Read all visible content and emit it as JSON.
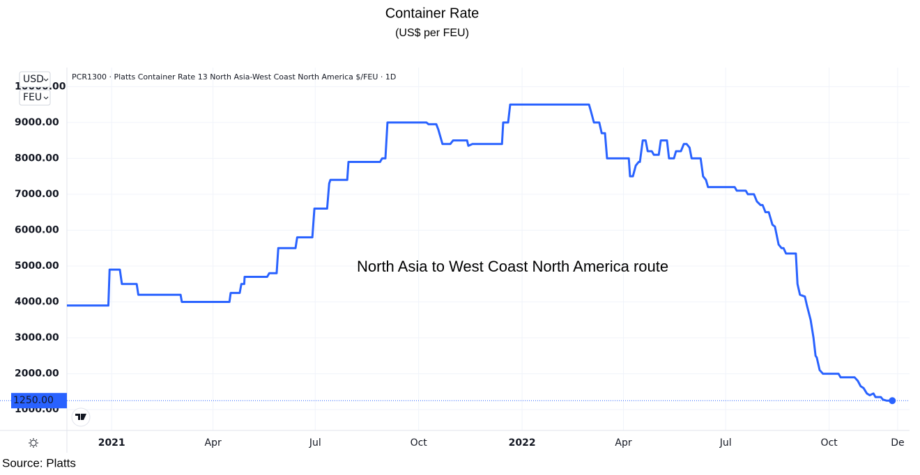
{
  "chart_data": {
    "type": "line",
    "title": "Container Rate",
    "subtitle": "(US$ per FEU)",
    "annotation": "North Asia to West Coast North America route",
    "source": "Source: Platts",
    "currency": "USD",
    "unit": "FEU",
    "last_label": "1250.00",
    "grid": true,
    "xlim": [
      2020.891,
      2022.944
    ],
    "ylim": [
      420,
      10530
    ],
    "xticks": [
      {
        "value": 2021,
        "label": "2021"
      },
      {
        "value": 2021.247,
        "label": "Apr"
      },
      {
        "value": 2021.496,
        "label": "Jul"
      },
      {
        "value": 2021.748,
        "label": "Oct"
      },
      {
        "value": 2022,
        "label": "2022"
      },
      {
        "value": 2022.247,
        "label": "Apr"
      },
      {
        "value": 2022.496,
        "label": "Jul"
      },
      {
        "value": 2022.748,
        "label": "Oct"
      },
      {
        "value": 2022.915,
        "label": "De"
      }
    ],
    "yticks": [
      {
        "value": 1000,
        "label": "1000.00"
      },
      {
        "value": 2000,
        "label": "2000.00"
      },
      {
        "value": 3000,
        "label": "3000.00"
      },
      {
        "value": 4000,
        "label": "4000.00"
      },
      {
        "value": 5000,
        "label": "5000.00"
      },
      {
        "value": 6000,
        "label": "6000.00"
      },
      {
        "value": 7000,
        "label": "7000.00"
      },
      {
        "value": 8000,
        "label": "8000.00"
      },
      {
        "value": 9000,
        "label": "9000.00"
      },
      {
        "value": 10000,
        "label": "10000.00"
      }
    ],
    "x": [
      2020.891,
      2020.992,
      2020.995,
      2021.02,
      2021.025,
      2021.061,
      2021.065,
      2021.168,
      2021.171,
      2021.287,
      2021.29,
      2021.312,
      2021.316,
      2021.323,
      2021.324,
      2021.379,
      2021.384,
      2021.402,
      2021.406,
      2021.448,
      2021.452,
      2021.489,
      2021.494,
      2021.525,
      2021.53,
      2021.533,
      2021.574,
      2021.577,
      2021.654,
      2021.659,
      2021.667,
      2021.672,
      2021.767,
      2021.772,
      2021.791,
      2021.796,
      2021.806,
      2021.825,
      2021.832,
      2021.866,
      2021.869,
      2021.879,
      2021.951,
      2021.954,
      2021.966,
      2021.971,
      2022.163,
      2022.168,
      2022.175,
      2022.188,
      2022.194,
      2022.202,
      2022.207,
      2022.26,
      2022.263,
      2022.27,
      2022.277,
      2022.284,
      2022.287,
      2022.294,
      2022.301,
      2022.306,
      2022.316,
      2022.321,
      2022.333,
      2022.338,
      2022.353,
      2022.358,
      2022.37,
      2022.375,
      2022.387,
      2022.394,
      2022.401,
      2022.408,
      2022.413,
      2022.435,
      2022.441,
      2022.448,
      2022.453,
      2022.518,
      2022.523,
      2022.545,
      2022.55,
      2022.565,
      2022.572,
      2022.581,
      2022.586,
      2022.593,
      2022.601,
      2022.61,
      2022.616,
      2022.625,
      2022.632,
      2022.637,
      2022.643,
      2022.667,
      2022.671,
      2022.677,
      2022.689,
      2022.694,
      2022.703,
      2022.71,
      2022.715,
      2022.718,
      2022.725,
      2022.733,
      2022.771,
      2022.776,
      2022.81,
      2022.818,
      2022.825,
      2022.832,
      2022.84,
      2022.847,
      2022.856,
      2022.861,
      2022.874,
      2022.879,
      2022.888,
      2022.902
    ],
    "series": [
      {
        "name": "PCR1300 · Platts Container Rate 13 North Asia-West Coast North America $/FEU · 1D",
        "color": "#2962ff",
        "values": [
          3900,
          3900,
          4900,
          4900,
          4500,
          4500,
          4200,
          4200,
          4000,
          4000,
          4250,
          4250,
          4500,
          4500,
          4700,
          4700,
          4800,
          4800,
          5500,
          5500,
          5800,
          5800,
          6600,
          6600,
          7300,
          7400,
          7400,
          7900,
          7900,
          8000,
          8000,
          9000,
          9000,
          8950,
          8950,
          8800,
          8400,
          8400,
          8500,
          8500,
          8350,
          8400,
          8400,
          9000,
          9000,
          9500,
          9500,
          9300,
          9000,
          9000,
          8700,
          8700,
          8000,
          8000,
          7500,
          7500,
          7800,
          7900,
          7900,
          8500,
          8500,
          8200,
          8200,
          8100,
          8100,
          8500,
          8500,
          8000,
          8000,
          8200,
          8200,
          8400,
          8400,
          8300,
          8000,
          8000,
          7500,
          7400,
          7200,
          7200,
          7100,
          7100,
          7000,
          7000,
          6800,
          6700,
          6700,
          6500,
          6500,
          6150,
          6100,
          5600,
          5500,
          5500,
          5350,
          5350,
          4500,
          4200,
          4150,
          3900,
          3500,
          3000,
          2500,
          2450,
          2100,
          2000,
          2000,
          1900,
          1900,
          1800,
          1650,
          1600,
          1450,
          1400,
          1450,
          1350,
          1350,
          1280,
          1250,
          1250
        ]
      }
    ]
  }
}
